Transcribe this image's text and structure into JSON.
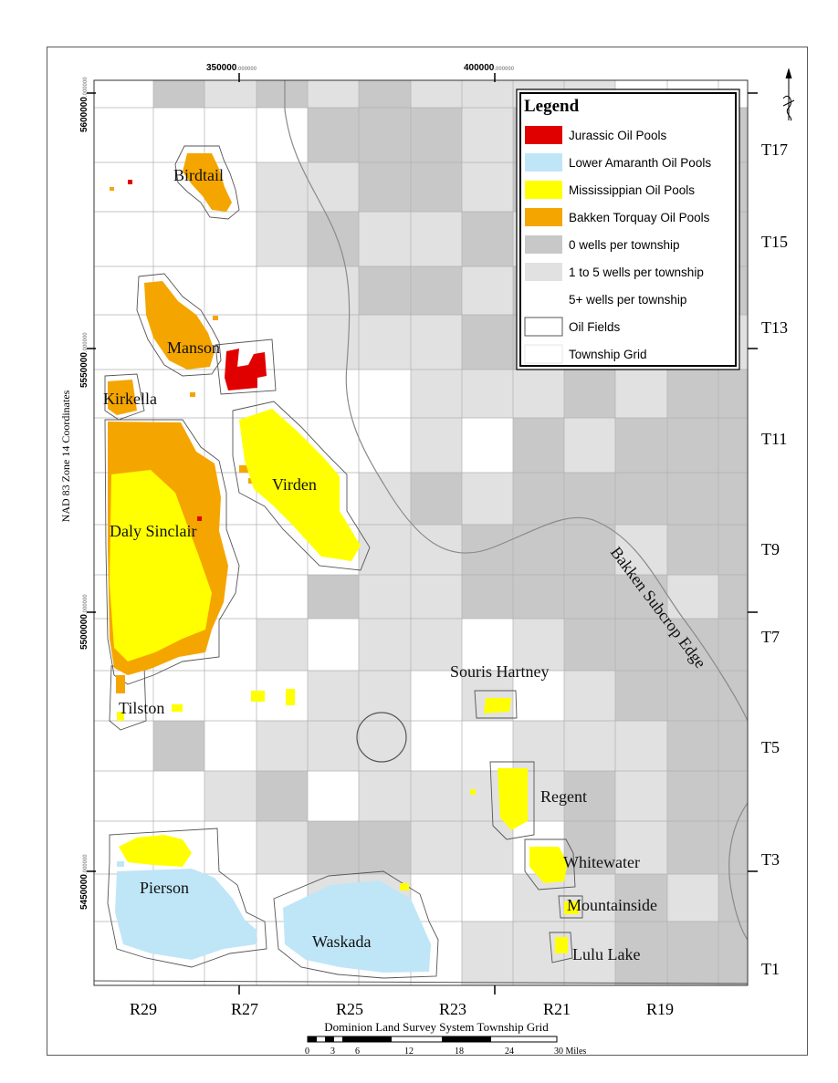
{
  "legend": {
    "title": "Legend",
    "items": [
      {
        "label": "Jurassic Oil Pools",
        "color": "#e00000"
      },
      {
        "label": "Lower Amaranth Oil Pools",
        "color": "#bfe6f7"
      },
      {
        "label": "Mississippian Oil Pools",
        "color": "#ffff00"
      },
      {
        "label": "Bakken Torquay Oil Pools",
        "color": "#f5a500"
      },
      {
        "label": "0 wells per township",
        "color": "#c8c8c8"
      },
      {
        "label": "1 to 5 wells per township",
        "color": "#e1e1e1"
      },
      {
        "label": "5+ wells per township",
        "color": "#ffffff"
      },
      {
        "label": "Oil Fields",
        "color": "#ffffff"
      },
      {
        "label": "Township Grid",
        "color": "#ffffff"
      }
    ]
  },
  "townships": [
    "T17",
    "T15",
    "T13",
    "T11",
    "T9",
    "T7",
    "T5",
    "T3",
    "T1"
  ],
  "ranges": [
    "R29",
    "R27",
    "R25",
    "R23",
    "R21",
    "R19"
  ],
  "top_coords": [
    {
      "value": "350000",
      "suffix": ".000000"
    },
    {
      "value": "400000",
      "suffix": ".000000"
    }
  ],
  "left_coords": [
    {
      "value": "5600000",
      "suffix": ".000000"
    },
    {
      "value": "5550000",
      "suffix": ".000000"
    },
    {
      "value": "5500000",
      "suffix": ".000000"
    },
    {
      "value": "5450000",
      "suffix": ".000000"
    }
  ],
  "axis_title": "NAD 83 Zone 14 Coordinates",
  "subcrop_label": "Bakken Subcrop Edge",
  "fields": [
    {
      "name": "Birdtail"
    },
    {
      "name": "Manson"
    },
    {
      "name": "Kirkella"
    },
    {
      "name": "Virden"
    },
    {
      "name": "Daly Sinclair"
    },
    {
      "name": "Souris Hartney"
    },
    {
      "name": "Tilston"
    },
    {
      "name": "Regent"
    },
    {
      "name": "Whitewater"
    },
    {
      "name": "Pierson"
    },
    {
      "name": "Mountainside"
    },
    {
      "name": "Waskada"
    },
    {
      "name": "Lulu Lake"
    }
  ],
  "scale_bar": {
    "title": "Dominion Land Survey System Township Grid",
    "ticks": [
      "0",
      "3",
      "6",
      "12",
      "18",
      "24",
      "30 Miles"
    ]
  }
}
